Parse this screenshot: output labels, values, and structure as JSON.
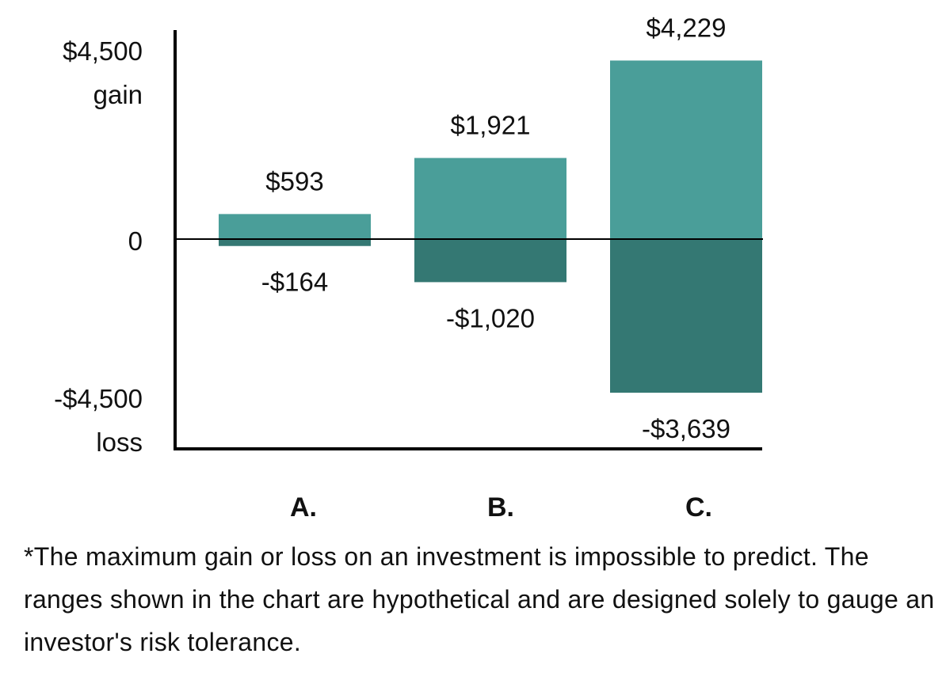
{
  "chart_data": {
    "type": "bar",
    "categories": [
      "A.",
      "B.",
      "C."
    ],
    "series": [
      {
        "key": "gain",
        "values": [
          593,
          1921,
          4229
        ]
      },
      {
        "key": "loss",
        "values": [
          -164,
          -1020,
          -3639
        ]
      }
    ],
    "value_labels": {
      "gain": [
        "$593",
        "$1,921",
        "$4,229"
      ],
      "loss": [
        "-$164",
        "-$1,020",
        "-$3,639"
      ]
    },
    "y_ticks": {
      "top_value": "$4,500",
      "top_word": "gain",
      "zero": "0",
      "bottom_value": "-$4,500",
      "bottom_word": "loss"
    },
    "ylim": [
      -4500,
      4500
    ],
    "colors": {
      "gain": "#4a9e99",
      "loss": "#347873",
      "axis": "#000000"
    }
  },
  "footnote": "*The maximum gain or loss on an investment is impossible to predict. The ranges shown in the chart are hypothetical and are designed solely to gauge an investor's risk tolerance."
}
